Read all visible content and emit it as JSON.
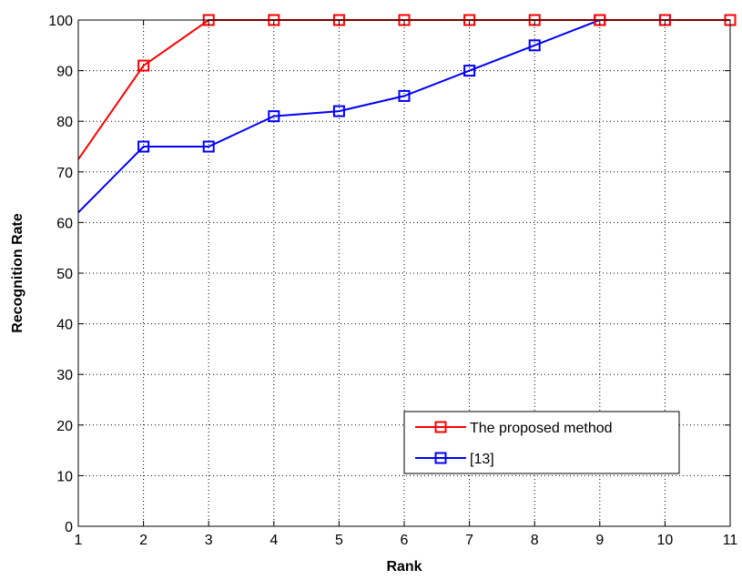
{
  "chart_data": {
    "type": "line",
    "title": "",
    "xlabel": "Rank",
    "ylabel": "Recognition Rate",
    "x": [
      1,
      2,
      3,
      4,
      5,
      6,
      7,
      8,
      9,
      10,
      11
    ],
    "xlim": [
      1,
      11
    ],
    "ylim": [
      0,
      100
    ],
    "xticks": [
      1,
      2,
      3,
      4,
      5,
      6,
      7,
      8,
      9,
      10,
      11
    ],
    "yticks": [
      0,
      10,
      20,
      30,
      40,
      50,
      60,
      70,
      80,
      90,
      100
    ],
    "grid": true,
    "legend_position": "bottom-right",
    "series": [
      {
        "name": "The proposed method",
        "color": "#ff0000",
        "marker": "square",
        "values": [
          72.5,
          91,
          100,
          100,
          100,
          100,
          100,
          100,
          100,
          100,
          100
        ]
      },
      {
        "name": "[13]",
        "color": "#0000ff",
        "marker": "square",
        "values": [
          62,
          75,
          75,
          81,
          82,
          85,
          90,
          95,
          100,
          100,
          100
        ]
      }
    ]
  }
}
